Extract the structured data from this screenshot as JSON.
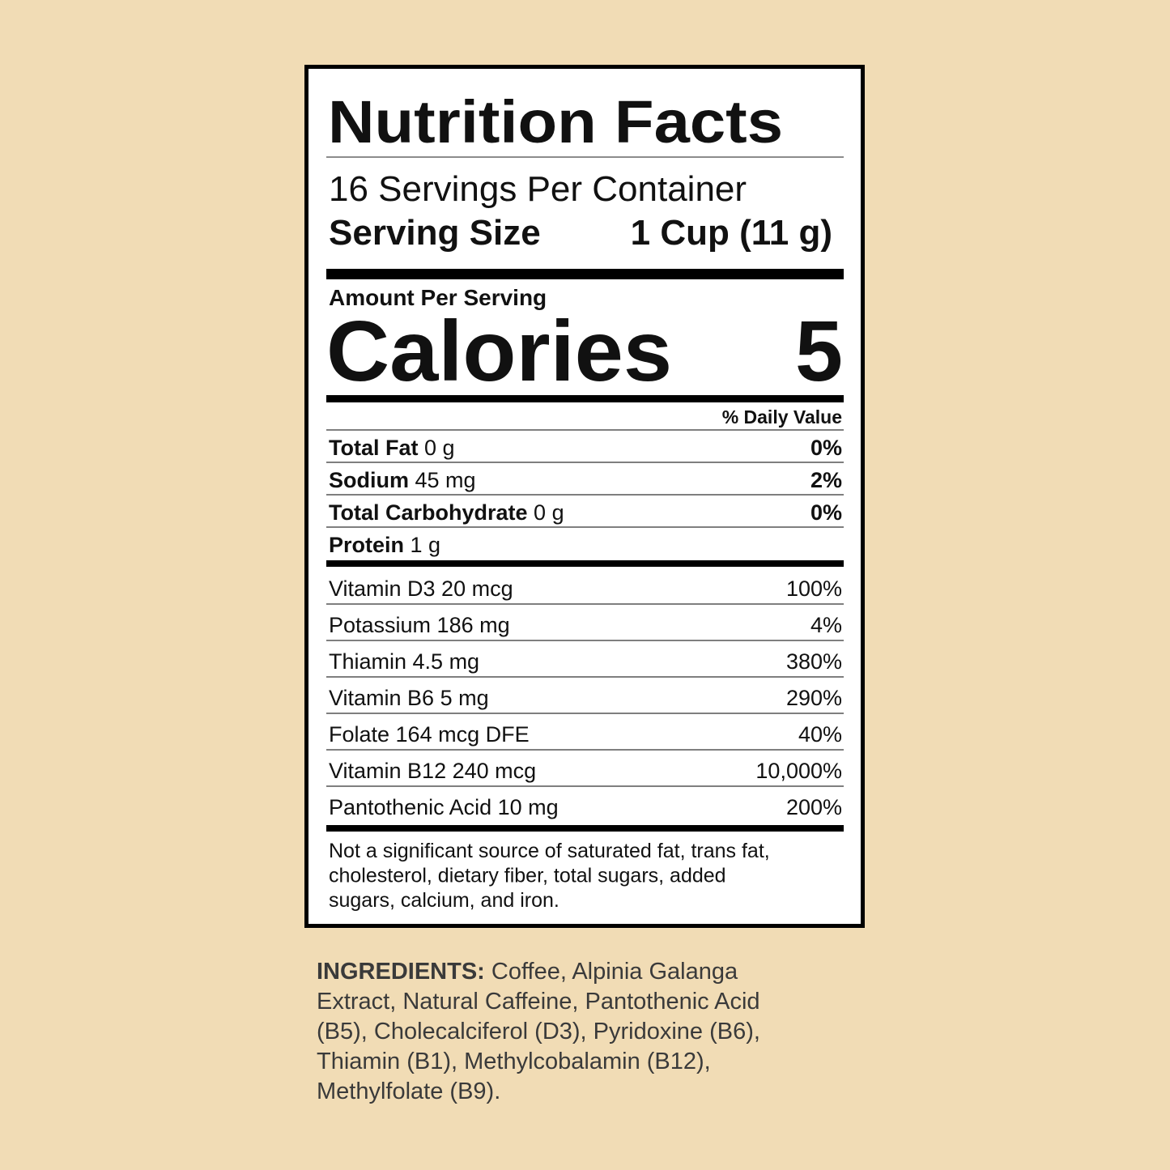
{
  "header": {
    "title": "Nutrition Facts",
    "servings": "16 Servings Per Container",
    "serving_size_label": "Serving Size",
    "serving_size": "1 Cup (11 g)"
  },
  "calories": {
    "heading": "Amount Per Serving",
    "label": "Calories",
    "value": 5
  },
  "daily_value_heading": "% Daily Value",
  "nutrients": [
    {
      "name": "Total Fat",
      "amount": "0 g",
      "dv": "0%"
    },
    {
      "name": "Sodium",
      "amount": "45 mg",
      "dv": "2%"
    },
    {
      "name": "Total Carbohydrate",
      "amount": "0 g",
      "dv": "0%"
    },
    {
      "name": "Protein",
      "amount": "1 g"
    }
  ],
  "vitamins": [
    {
      "text": "Vitamin D3 20 mcg",
      "dv": "100%"
    },
    {
      "text": "Potassium 186 mg",
      "dv": "4%"
    },
    {
      "text": "Thiamin 4.5 mg",
      "dv": "380%"
    },
    {
      "text": "Vitamin B6 5 mg",
      "dv": "290%"
    },
    {
      "text": "Folate 164 mcg DFE",
      "dv": "40%"
    },
    {
      "text": "Vitamin B12 240 mcg",
      "dv": "10,000%"
    },
    {
      "text": "Pantothenic Acid 10 mg",
      "dv": "200%"
    }
  ],
  "footnote": [
    "Not a significant source of saturated fat, trans fat,",
    "cholesterol, dietary fiber, total sugars, added",
    "sugars, calcium, and iron."
  ],
  "ingredients": {
    "label": "INGREDIENTS:",
    "lines": [
      " Coffee, Alpinia Galanga",
      "Extract, Natural Caffeine, Pantothenic Acid",
      "(B5), Cholecalciferol (D3), Pyridoxine (B6),",
      "Thiamin (B1), Methylcobalamin (B12),",
      "Methylfolate (B9)."
    ]
  }
}
